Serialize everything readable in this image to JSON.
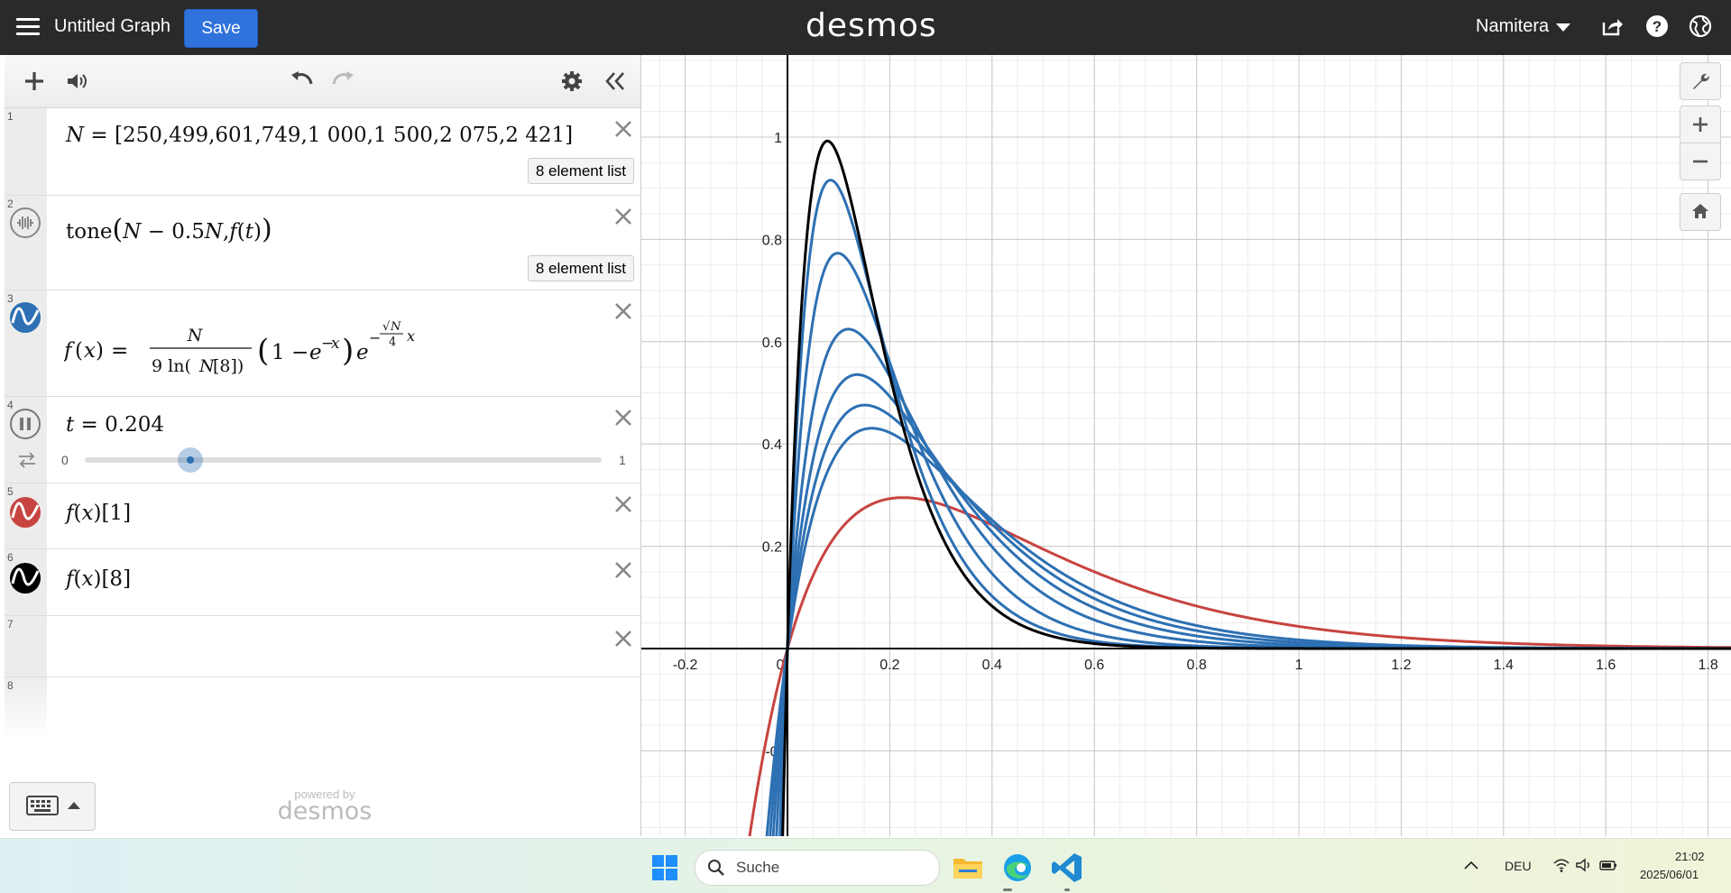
{
  "app": {
    "title": "Untitled Graph",
    "save_label": "Save",
    "logo": "desmos",
    "user": "Namitera"
  },
  "expressions": [
    {
      "num": "1",
      "latex_text": "N = [250,499,601,749,1 000,1 500,2 075,2 421]",
      "badge": "8 element list"
    },
    {
      "num": "2",
      "badge": "8 element list"
    },
    {
      "num": "3",
      "color": "#2d70b3"
    },
    {
      "num": "4",
      "var": "t",
      "value": "0.204",
      "slider_min": "0",
      "slider_max": "1",
      "slider_value": 0.204
    },
    {
      "num": "5",
      "color": "#c74440"
    },
    {
      "num": "6",
      "color": "#000000"
    },
    {
      "num": "7"
    },
    {
      "num": "8"
    }
  ],
  "powered_by": "powered by",
  "chart_data": {
    "type": "line",
    "x_ticks": [
      "-0.2",
      "0",
      "0.2",
      "0.4",
      "0.6",
      "0.8",
      "1",
      "1.2",
      "1.4",
      "1.6",
      "1.8"
    ],
    "y_ticks": [
      "1",
      "0.8",
      "0.6",
      "0.4",
      "0.2",
      "-0."
    ],
    "xlim": [
      -0.28,
      1.82
    ],
    "ylim": [
      -0.36,
      1.16
    ],
    "grid": true,
    "function": "f(x) = N/(9 ln(N[8])) (1 - e^(-x)) e^(-(sqrt(N)/4) x)",
    "N": [
      250,
      499,
      601,
      749,
      1000,
      1500,
      2075,
      2421
    ],
    "series": [
      {
        "name": "f(x)[1]",
        "N": 250,
        "color": "#c74440"
      },
      {
        "N": 499,
        "color": "#2d70b3"
      },
      {
        "N": 601,
        "color": "#2d70b3"
      },
      {
        "N": 749,
        "color": "#2d70b3"
      },
      {
        "N": 1000,
        "color": "#2d70b3"
      },
      {
        "N": 1500,
        "color": "#2d70b3"
      },
      {
        "N": 2075,
        "color": "#2d70b3"
      },
      {
        "name": "f(x)[8]",
        "N": 2421,
        "color": "#000000"
      }
    ]
  },
  "taskbar": {
    "search_label": "Suche",
    "lang": "DEU",
    "time": "21:02",
    "date": "2025/06/01"
  }
}
